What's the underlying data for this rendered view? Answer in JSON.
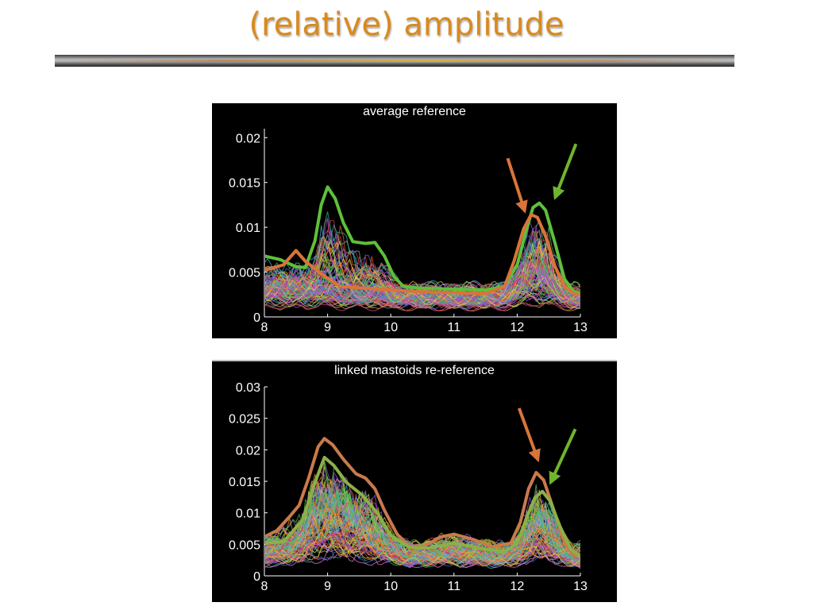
{
  "slide": {
    "title": "(relative) amplitude"
  },
  "chart_data": [
    {
      "type": "line",
      "title": "average reference",
      "xlabel": "",
      "ylabel": "",
      "xlim": [
        8,
        13
      ],
      "ylim": [
        0,
        0.021
      ],
      "x_ticks": [
        "8",
        "9",
        "10",
        "11",
        "12",
        "13"
      ],
      "y_ticks": [
        "0",
        "0.005",
        "0.01",
        "0.015",
        "0.02"
      ],
      "background": "#000000",
      "axis_color": "#ffffff",
      "grid": false,
      "legend": "none",
      "highlighted_series": [
        {
          "color": "#5fbf3a",
          "points": [
            [
              8.0,
              0.0068
            ],
            [
              8.25,
              0.0064
            ],
            [
              8.5,
              0.0056
            ],
            [
              8.65,
              0.0055
            ],
            [
              8.8,
              0.0085
            ],
            [
              8.9,
              0.0125
            ],
            [
              9.0,
              0.0145
            ],
            [
              9.12,
              0.0132
            ],
            [
              9.25,
              0.0105
            ],
            [
              9.4,
              0.0084
            ],
            [
              9.6,
              0.0082
            ],
            [
              9.75,
              0.0083
            ],
            [
              9.9,
              0.0068
            ],
            [
              10.05,
              0.0045
            ],
            [
              10.2,
              0.0034
            ],
            [
              10.5,
              0.0032
            ],
            [
              11.0,
              0.0031
            ],
            [
              11.5,
              0.003
            ],
            [
              11.8,
              0.0034
            ],
            [
              12.0,
              0.0058
            ],
            [
              12.15,
              0.0098
            ],
            [
              12.25,
              0.0122
            ],
            [
              12.35,
              0.0127
            ],
            [
              12.45,
              0.0119
            ],
            [
              12.6,
              0.0082
            ],
            [
              12.75,
              0.0042
            ],
            [
              12.9,
              0.0028
            ],
            [
              13.0,
              0.0026
            ]
          ]
        },
        {
          "color": "#d9743a",
          "points": [
            [
              8.0,
              0.0052
            ],
            [
              8.3,
              0.0058
            ],
            [
              8.5,
              0.0074
            ],
            [
              8.65,
              0.0062
            ],
            [
              8.9,
              0.0048
            ],
            [
              9.2,
              0.0034
            ],
            [
              9.6,
              0.0032
            ],
            [
              10.0,
              0.003
            ],
            [
              10.5,
              0.0028
            ],
            [
              11.0,
              0.0027
            ],
            [
              11.5,
              0.0026
            ],
            [
              11.8,
              0.0034
            ],
            [
              11.95,
              0.0062
            ],
            [
              12.1,
              0.0098
            ],
            [
              12.22,
              0.0114
            ],
            [
              12.32,
              0.0111
            ],
            [
              12.45,
              0.009
            ],
            [
              12.6,
              0.0056
            ],
            [
              12.75,
              0.0034
            ],
            [
              12.9,
              0.0026
            ],
            [
              13.0,
              0.0024
            ]
          ]
        }
      ],
      "annotations": [
        {
          "type": "arrow",
          "color": "#d9743a",
          "from": [
            11.85,
            0.0177
          ],
          "to": [
            12.12,
            0.0118
          ]
        },
        {
          "type": "arrow",
          "color": "#6fb52c",
          "from": [
            12.93,
            0.0193
          ],
          "to": [
            12.6,
            0.0133
          ]
        }
      ]
    },
    {
      "type": "line",
      "title": "linked mastoids re-reference",
      "xlabel": "",
      "ylabel": "",
      "xlim": [
        8,
        13
      ],
      "ylim": [
        0,
        0.03
      ],
      "x_ticks": [
        "8",
        "9",
        "10",
        "11",
        "12",
        "13"
      ],
      "y_ticks": [
        "0",
        "0.005",
        "0.01",
        "0.015",
        "0.02",
        "0.025",
        "0.03"
      ],
      "background": "#000000",
      "axis_color": "#ffffff",
      "grid": false,
      "legend": "none",
      "highlighted_series": [
        {
          "color": "#c87a4c",
          "points": [
            [
              8.0,
              0.0062
            ],
            [
              8.2,
              0.0072
            ],
            [
              8.4,
              0.0094
            ],
            [
              8.55,
              0.0112
            ],
            [
              8.7,
              0.0155
            ],
            [
              8.85,
              0.0205
            ],
            [
              8.95,
              0.0218
            ],
            [
              9.08,
              0.0208
            ],
            [
              9.25,
              0.0185
            ],
            [
              9.45,
              0.0162
            ],
            [
              9.6,
              0.0155
            ],
            [
              9.75,
              0.0138
            ],
            [
              9.9,
              0.0104
            ],
            [
              10.1,
              0.0066
            ],
            [
              10.3,
              0.0047
            ],
            [
              10.5,
              0.0046
            ],
            [
              10.8,
              0.0062
            ],
            [
              11.0,
              0.0066
            ],
            [
              11.3,
              0.0058
            ],
            [
              11.6,
              0.0046
            ],
            [
              11.9,
              0.0052
            ],
            [
              12.05,
              0.0085
            ],
            [
              12.18,
              0.0138
            ],
            [
              12.3,
              0.0164
            ],
            [
              12.42,
              0.0152
            ],
            [
              12.6,
              0.0098
            ],
            [
              12.75,
              0.0052
            ],
            [
              12.9,
              0.0032
            ],
            [
              13.0,
              0.003
            ]
          ]
        },
        {
          "color": "#8bb048",
          "points": [
            [
              8.0,
              0.0052
            ],
            [
              8.3,
              0.0054
            ],
            [
              8.6,
              0.0088
            ],
            [
              8.8,
              0.0148
            ],
            [
              8.95,
              0.0188
            ],
            [
              9.1,
              0.0175
            ],
            [
              9.3,
              0.0148
            ],
            [
              9.55,
              0.0128
            ],
            [
              9.8,
              0.0098
            ],
            [
              10.0,
              0.0064
            ],
            [
              10.3,
              0.0045
            ],
            [
              10.6,
              0.0044
            ],
            [
              11.0,
              0.0052
            ],
            [
              11.4,
              0.0044
            ],
            [
              11.8,
              0.0038
            ],
            [
              12.0,
              0.0052
            ],
            [
              12.15,
              0.0092
            ],
            [
              12.28,
              0.0124
            ],
            [
              12.4,
              0.0134
            ],
            [
              12.52,
              0.0119
            ],
            [
              12.68,
              0.0078
            ],
            [
              12.85,
              0.0042
            ],
            [
              13.0,
              0.003
            ]
          ]
        }
      ],
      "annotations": [
        {
          "type": "arrow",
          "color": "#d9743a",
          "from": [
            12.03,
            0.0266
          ],
          "to": [
            12.33,
            0.0184
          ]
        },
        {
          "type": "arrow",
          "color": "#6fb52c",
          "from": [
            12.92,
            0.0233
          ],
          "to": [
            12.53,
            0.0148
          ]
        }
      ]
    }
  ]
}
